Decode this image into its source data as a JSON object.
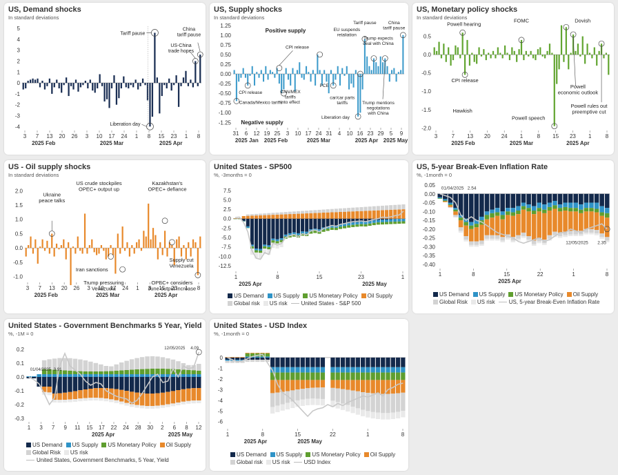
{
  "colors": {
    "us_demand": "#13294b",
    "us_supply": "#2f93c7",
    "us_monetary": "#5f9e2f",
    "oil_supply": "#e8892b",
    "global_risk": "#d3d3d3",
    "us_risk": "#e9e9e9",
    "line": "#c8c8c8",
    "bar_demand": "#1b2f54",
    "bar_supply": "#3d9bcb",
    "bar_monetary": "#62a531",
    "bar_oil": "#e8892b"
  },
  "legend_labels": {
    "us_demand": "US Demand",
    "us_supply": "US Supply",
    "us_monetary": "US Monetary Policy",
    "oil_supply": "Oil Supply",
    "global_risk": "Global risk",
    "global_risk_cap": "Global Risk",
    "us_risk": "US risk",
    "sp500_line": "United States - S&P 500",
    "bei_line": "US, 5-year Break-Even Inflation Rate",
    "gov_line": "United States, Government Benchmarks, 5 Year, Yield",
    "usd_line": "USD Index"
  },
  "panels": {
    "demand": {
      "title": "US, Demand shocks",
      "subtitle": "In standard deviations"
    },
    "supply": {
      "title": "US, Supply shocks",
      "subtitle": "In standard deviations"
    },
    "monetary": {
      "title": "US, Monetary policy shocks",
      "subtitle": "In standard deviations"
    },
    "oil": {
      "title": "US - Oil supply shocks",
      "subtitle": "In standard deviations"
    },
    "sp500": {
      "title": "United States - SP500",
      "subtitle": "%, -3months = 0"
    },
    "bei": {
      "title": "US, 5-year Break-Even Inflation Rate",
      "subtitle": "%, -1month = 0"
    },
    "gov": {
      "title": "United States - Government Benchmarks 5 Year, Yield",
      "subtitle": "%, -1M = 0"
    },
    "usd": {
      "title": "United States - USD Index",
      "subtitle": "%, -1month = 0"
    }
  },
  "chart_data": [
    {
      "id": "demand",
      "type": "bar",
      "title": "US, Demand shocks",
      "ylim": [
        -4.3,
        5.2
      ],
      "yticks": [
        5,
        4,
        3,
        2,
        1,
        0,
        -1,
        -2,
        -3,
        -4
      ],
      "xticks": [
        "3",
        "7",
        "13",
        "20",
        "26",
        "3",
        "10",
        "17",
        "24",
        "1",
        "8",
        "15",
        "23",
        "1",
        "8"
      ],
      "xgroups": [
        "2025 Feb",
        "2025 Mar",
        "2025 Apr"
      ],
      "values": [
        -0.6,
        -0.5,
        0.2,
        0.3,
        0.4,
        0.3,
        0.4,
        -0.4,
        0.2,
        -0.6,
        -0.3,
        0.4,
        -1.0,
        -0.4,
        0.3,
        -0.5,
        -0.9,
        -0.2,
        0.5,
        -1.2,
        -0.3,
        -0.6,
        0.3,
        -0.8,
        -0.4,
        -0.2,
        0.2,
        -0.5,
        0.3,
        -0.7,
        -0.9,
        -0.5,
        0.8,
        -0.3,
        -1.7,
        -1.5,
        -2.3,
        -0.5,
        0.7,
        -2.0,
        -1.4,
        -0.5,
        0.6,
        -0.4,
        -0.5,
        -0.2,
        -0.4,
        0.3,
        -0.6,
        -0.3,
        0.4,
        -0.2,
        -1.6,
        -4.0,
        -3.1,
        4.6,
        0.5,
        -2.8,
        -1.2,
        -0.2,
        -0.5,
        0.4,
        -0.7,
        -0.2,
        0.7,
        -2.2,
        -0.3,
        0.5,
        1.1,
        -0.3,
        0.3,
        -0.4,
        2.0,
        -0.3,
        2.6
      ],
      "annotations": [
        {
          "text": "Tariff pause",
          "index": 55
        },
        {
          "text": "US-China trade hopes",
          "index": 72
        },
        {
          "text": "China tariff pause",
          "index": 74
        },
        {
          "text": "Liberation day",
          "index": 53
        }
      ]
    },
    {
      "id": "supply",
      "type": "bar",
      "title": "US, Supply shocks",
      "ylim": [
        -1.37,
        1.3
      ],
      "yticks": [
        1.25,
        1.0,
        0.75,
        0.5,
        0.25,
        0.0,
        -0.25,
        -0.5,
        -0.75,
        -1.0,
        -1.25
      ],
      "xticks": [
        "31",
        "6",
        "12",
        "19",
        "25",
        "3",
        "10",
        "17",
        "24",
        "31",
        "4",
        "10",
        "16",
        "23",
        "29",
        "5",
        "9"
      ],
      "xgroups": [
        "2025 Jan",
        "2025 Feb",
        "2025 Mar",
        "2025 Apr",
        "2025 May"
      ],
      "values": [
        0.1,
        -0.7,
        -0.2,
        -0.1,
        0.15,
        -0.1,
        -0.3,
        -0.05,
        0.2,
        -0.3,
        0.05,
        -0.1,
        0.1,
        -0.2,
        0.2,
        -0.15,
        0.1,
        0.05,
        -0.1,
        0.15,
        -0.25,
        -0.5,
        -0.4,
        0.15,
        -0.15,
        -0.3,
        0.15,
        -0.45,
        0.1,
        0.3,
        -0.1,
        -0.15,
        0.2,
        0.05,
        -0.2,
        0.1,
        -0.3,
        0.5,
        0.1,
        -0.3,
        0.1,
        -0.2,
        -0.5,
        0.1,
        -0.3,
        -0.15,
        0.2,
        -0.3,
        0.15,
        -0.05,
        0.2,
        -0.4,
        -0.25,
        -0.35,
        0.1,
        -1.1,
        -1.0,
        -0.4,
        0.9,
        0.45,
        0.2,
        0.1,
        0.4,
        0.3,
        0.2,
        0.45,
        0.3,
        0.4,
        0.2,
        -0.2,
        0.1,
        0.15,
        -0.2,
        0.05,
        0.1,
        1.0
      ],
      "annotations": [
        {
          "text": "Positive supply"
        },
        {
          "text": "Negative supply"
        },
        {
          "text": "Canada/Mexico tariffs"
        },
        {
          "text": "CPI release"
        },
        {
          "text": "CPI release"
        },
        {
          "text": "CAN/MEX tariffs into effect"
        },
        {
          "text": "PCE"
        },
        {
          "text": "car/car part tariffs"
        },
        {
          "text": "Liberation day"
        },
        {
          "text": "EU suspends retaliation"
        },
        {
          "text": "Tariff pause"
        },
        {
          "text": "Trump expects deal with China"
        },
        {
          "text": "Trump mentions negotations with China"
        },
        {
          "text": "China tariff pause"
        }
      ]
    },
    {
      "id": "monetary",
      "type": "bar",
      "title": "US, Monetary policy shocks",
      "ylim": [
        -2.05,
        0.85
      ],
      "yticks": [
        0.5,
        0.0,
        -0.5,
        -1.0,
        -1.5,
        -2.0
      ],
      "xticks": [
        "3",
        "7",
        "13",
        "20",
        "24",
        "1",
        "8",
        "15",
        "23",
        "1",
        "8"
      ],
      "xgroups": [
        "2025 Feb",
        "2025 Mar",
        "2025 Apr"
      ],
      "values": [
        0.2,
        0.1,
        0.35,
        -0.1,
        0.3,
        -0.2,
        0.2,
        -0.3,
        -0.15,
        0.25,
        0.2,
        -0.1,
        0.6,
        -0.55,
        0.4,
        -0.3,
        0.05,
        -0.2,
        -0.25,
        0.2,
        -0.05,
        0.15,
        -0.15,
        0.05,
        -0.1,
        0.1,
        -0.1,
        0.2,
        0.05,
        -0.1,
        0.25,
        0.05,
        -0.15,
        0.2,
        0.1,
        -0.2,
        0.15,
        0.4,
        -0.15,
        0.1,
        -0.05,
        0.1,
        -0.1,
        -0.15,
        0.15,
        0.2,
        -0.05,
        -0.1,
        0.1,
        0.3,
        0.05,
        -1.95,
        -0.8,
        -0.4,
        0.8,
        -0.2,
        0.75,
        -0.4,
        0.05,
        0.55,
        0.1,
        0.3,
        -0.05,
        0.5,
        -0.25,
        0.3,
        0.05,
        -0.1,
        0.2,
        -0.3,
        0.1,
        0.3,
        -0.1,
        0.05,
        -0.55
      ],
      "annotations": [
        {
          "text": "Powell hearing"
        },
        {
          "text": "CPI release"
        },
        {
          "text": "FOMC"
        },
        {
          "text": "Dovish"
        },
        {
          "text": "Hawkish"
        },
        {
          "text": "Powell speech"
        },
        {
          "text": "Powell economic outlook"
        },
        {
          "text": "Powell rules out preemptive cut"
        }
      ]
    },
    {
      "id": "oil",
      "type": "bar",
      "title": "US - Oil supply shocks",
      "ylim": [
        -1.18,
        2.2
      ],
      "yticks": [
        2.0,
        1.5,
        1.0,
        0.5,
        0.0,
        -0.5,
        -1.0
      ],
      "xticks": [
        "3",
        "7",
        "13",
        "20",
        "26",
        "3",
        "10",
        "17",
        "24",
        "1",
        "8",
        "15",
        "23",
        "1",
        "8"
      ],
      "xgroups": [
        "2025 Feb",
        "2025 Mar",
        "2025 Apr"
      ],
      "values": [
        -0.3,
        0.1,
        0.4,
        -0.2,
        0.3,
        -0.55,
        0.05,
        0.3,
        -0.1,
        0.25,
        -0.2,
        0.5,
        -0.3,
        0.15,
        -0.05,
        0.1,
        0.3,
        -0.4,
        0.2,
        -1.3,
        0.05,
        -0.2,
        0.4,
        -0.1,
        -0.2,
        1.2,
        -0.2,
        0.1,
        0.3,
        -0.15,
        -0.25,
        -0.2,
        0.1,
        -0.1,
        -0.4,
        -0.3,
        0.1,
        -0.25,
        -0.9,
        0.5,
        -0.2,
        0.75,
        -0.1,
        0.2,
        -0.3,
        0.1,
        -0.2,
        0.2,
        0.3,
        -0.1,
        0.6,
        0.4,
        1.55,
        0.3,
        0.7,
        0.45,
        -0.4,
        0.2,
        -0.25,
        0.6,
        -0.3,
        0.2,
        0.1,
        -0.6,
        0.3,
        0.4,
        -0.3,
        0.1,
        -0.4,
        0.2,
        -0.3,
        0.3,
        0.2,
        -0.95,
        0.4
      ],
      "annotations": [
        {
          "text": "Ukraine peace talks"
        },
        {
          "text": "US crude stockpiles OPEC+ output up"
        },
        {
          "text": "Kazakhstan's OPEC+ defiance"
        },
        {
          "text": "Iran sanctions"
        },
        {
          "text": "Trump pressuring Venezuela"
        },
        {
          "text": "Supply cut Venezuela"
        },
        {
          "text": "OPEC+ considers June output increase"
        }
      ]
    },
    {
      "id": "sp500",
      "type": "bar",
      "title": "United States - SP500",
      "stacked": true,
      "ylim": [
        -13.8,
        8.2
      ],
      "yticks": [
        7.5,
        5.0,
        2.5,
        0.0,
        -2.5,
        -5.0,
        -7.5,
        -10.0,
        -12.5
      ],
      "xticks": [
        "1",
        "8",
        "15",
        "23",
        "1"
      ],
      "xgroups": [
        "2025 Apr",
        "2025 May"
      ],
      "note": "approximate decomposition; 41 trading days",
      "line": [
        0.3,
        0.4,
        -1.0,
        -3.5,
        -8.5,
        -10.5,
        -10.8,
        -9.0,
        -9.5,
        -6.5,
        -7.0,
        -6.6,
        -5.0,
        -4.5,
        -4.2,
        -4.8,
        -4.0,
        -4.3,
        -3.2,
        -3.0,
        -3.5,
        -2.6,
        -2.2,
        -1.8,
        -2.0,
        -1.5,
        -1.3,
        -1.0,
        -0.8,
        -0.7,
        -0.6,
        -0.8,
        -0.5,
        -0.2,
        0.0,
        0.4,
        0.3,
        0.5,
        0.8,
        1.0,
        2.0
      ]
    },
    {
      "id": "bei",
      "type": "bar",
      "title": "US, 5-year Break-Even Inflation Rate",
      "stacked": true,
      "ylim": [
        -0.42,
        0.05
      ],
      "yticks": [
        0.05,
        0.0,
        -0.05,
        -0.1,
        -0.15,
        -0.2,
        -0.25,
        -0.3,
        -0.35,
        -0.4
      ],
      "xticks": [
        "1",
        "8",
        "15",
        "22",
        "1",
        "8"
      ],
      "xgroups": [
        "2025 Apr"
      ],
      "line_start": {
        "date": "01/04/2025",
        "value": "2.54"
      },
      "line_end": {
        "date": "12/05/2025",
        "value": "2.35"
      },
      "line": [
        0.0,
        -0.01,
        -0.02,
        -0.05,
        -0.12,
        -0.15,
        -0.13,
        -0.15,
        -0.16,
        -0.18,
        -0.2,
        -0.22,
        -0.23,
        -0.24,
        -0.25,
        -0.27,
        -0.28,
        -0.27,
        -0.26,
        -0.25,
        -0.27,
        -0.26,
        -0.24,
        -0.22,
        -0.22,
        -0.2,
        -0.21,
        -0.22,
        -0.2,
        -0.19,
        -0.18,
        -0.17,
        -0.2
      ],
      "stacks": {
        "us_demand": [
          -0.02,
          -0.03,
          -0.05,
          -0.08,
          -0.12,
          -0.14,
          -0.16,
          -0.15,
          -0.13,
          -0.1,
          -0.09,
          -0.08,
          -0.1,
          -0.08,
          -0.08,
          -0.07,
          -0.05,
          -0.06,
          -0.07,
          -0.05,
          -0.06,
          -0.05,
          -0.04,
          -0.06,
          -0.05,
          -0.05,
          -0.05,
          -0.06,
          -0.05,
          -0.05,
          -0.05,
          -0.07,
          -0.08
        ],
        "us_supply": [
          -0.005,
          -0.008,
          -0.01,
          -0.01,
          -0.015,
          -0.02,
          -0.02,
          -0.02,
          -0.02,
          -0.02,
          -0.02,
          -0.025,
          -0.02,
          -0.02,
          -0.025,
          -0.025,
          -0.02,
          -0.02,
          -0.025,
          -0.03,
          -0.03,
          -0.025,
          -0.025,
          -0.02,
          -0.025,
          -0.03,
          -0.03,
          -0.03,
          -0.03,
          -0.03,
          -0.035,
          -0.035,
          -0.03
        ],
        "us_monetary": [
          -0.003,
          -0.004,
          -0.005,
          -0.01,
          -0.015,
          -0.02,
          -0.02,
          -0.02,
          -0.025,
          -0.025,
          -0.025,
          -0.02,
          -0.025,
          -0.02,
          -0.02,
          -0.02,
          -0.02,
          -0.02,
          -0.02,
          -0.02,
          -0.02,
          -0.02,
          -0.02,
          -0.02,
          -0.02,
          -0.02,
          -0.02,
          -0.02,
          -0.02,
          -0.02,
          -0.02,
          -0.02,
          -0.025
        ],
        "oil_supply": [
          0.0,
          -0.005,
          -0.01,
          -0.02,
          -0.04,
          -0.06,
          -0.07,
          -0.08,
          -0.09,
          -0.09,
          -0.1,
          -0.11,
          -0.1,
          -0.11,
          -0.12,
          -0.12,
          -0.13,
          -0.14,
          -0.15,
          -0.15,
          -0.15,
          -0.14,
          -0.13,
          -0.12,
          -0.12,
          -0.11,
          -0.11,
          -0.1,
          -0.1,
          -0.1,
          -0.1,
          -0.1,
          -0.11
        ],
        "global_risk": [
          0.0,
          0.0,
          -0.005,
          -0.01,
          -0.02,
          -0.02,
          -0.02,
          -0.02,
          -0.02,
          -0.02,
          -0.02,
          -0.02,
          -0.02,
          -0.02,
          -0.02,
          -0.02,
          -0.02,
          -0.02,
          -0.02,
          -0.02,
          -0.02,
          -0.02,
          -0.02,
          -0.02,
          -0.02,
          -0.02,
          -0.02,
          -0.02,
          -0.02,
          -0.02,
          -0.02,
          -0.02,
          -0.02
        ],
        "us_risk": [
          0.0,
          0.0,
          0.0,
          -0.005,
          -0.01,
          -0.01,
          -0.01,
          -0.01,
          -0.01,
          -0.01,
          -0.01,
          -0.01,
          -0.01,
          -0.01,
          -0.01,
          -0.01,
          -0.01,
          -0.01,
          -0.01,
          -0.01,
          -0.01,
          -0.01,
          -0.01,
          -0.01,
          -0.01,
          -0.01,
          -0.01,
          -0.01,
          -0.01,
          -0.01,
          -0.01,
          -0.01,
          -0.01
        ]
      }
    },
    {
      "id": "gov",
      "type": "bar",
      "title": "United States - Government Benchmarks 5 Year, Yield",
      "stacked": true,
      "ylim": [
        -0.32,
        0.22
      ],
      "yticks": [
        0.2,
        0.1,
        0.0,
        -0.1,
        -0.2,
        -0.3
      ],
      "xticks": [
        "1",
        "3",
        "7",
        "9",
        "11",
        "15",
        "17",
        "22",
        "24",
        "28",
        "30",
        "2",
        "6",
        "8",
        "12"
      ],
      "xgroups": [
        "2025 Apr",
        "2025 May"
      ],
      "line_start": {
        "date": "01/04/2025",
        "value": "3.91"
      },
      "line_end": {
        "date": "12/05/2025",
        "value": "4.09"
      },
      "line": [
        0.0,
        -0.02,
        -0.05,
        -0.12,
        -0.2,
        -0.15,
        0.08,
        0.17,
        0.08,
        0.05,
        0.02,
        -0.03,
        -0.06,
        -0.04,
        -0.05,
        -0.1,
        -0.12,
        -0.14,
        -0.15,
        -0.16,
        -0.19,
        -0.17,
        -0.12,
        -0.06,
        0.0,
        0.02,
        -0.04,
        -0.03,
        0.06,
        0.0,
        0.08,
        0.06,
        0.07,
        0.18
      ]
    },
    {
      "id": "usd",
      "type": "bar",
      "title": "United States - USD Index",
      "stacked": true,
      "ylim": [
        -6.6,
        0.9
      ],
      "yticks": [
        0,
        -1,
        -2,
        -3,
        -4,
        -5,
        -6
      ],
      "xticks": [
        "1",
        "8",
        "15",
        "22",
        "1",
        "8"
      ],
      "xgroups": [
        "2025 Apr",
        "2025 May"
      ],
      "line": [
        0.0,
        -0.2,
        -0.4,
        -0.3,
        -0.1,
        0.1,
        0.2,
        0.3,
        -0.5,
        -1.2,
        -2.5,
        -3.3,
        -3.6,
        -4.0,
        -4.5,
        -5.0,
        -5.5,
        -5.0,
        -4.8,
        -4.7,
        -4.4,
        -4.6,
        -4.3,
        -4.5,
        -4.2,
        -4.0,
        -3.8,
        -3.6,
        -3.7,
        -3.5,
        -3.3,
        -3.6,
        -3.0,
        -2.8,
        -2.5,
        -2.4
      ]
    }
  ]
}
